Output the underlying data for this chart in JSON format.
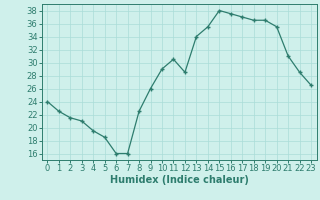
{
  "x": [
    0,
    1,
    2,
    3,
    4,
    5,
    6,
    7,
    8,
    9,
    10,
    11,
    12,
    13,
    14,
    15,
    16,
    17,
    18,
    19,
    20,
    21,
    22,
    23
  ],
  "y": [
    24,
    22.5,
    21.5,
    21,
    19.5,
    18.5,
    16,
    16,
    22.5,
    26,
    29,
    30.5,
    28.5,
    34,
    35.5,
    38,
    37.5,
    37,
    36.5,
    36.5,
    35.5,
    31,
    28.5,
    26.5
  ],
  "xlabel": "Humidex (Indice chaleur)",
  "xlim": [
    -0.5,
    23.5
  ],
  "ylim": [
    15,
    39
  ],
  "yticks": [
    16,
    18,
    20,
    22,
    24,
    26,
    28,
    30,
    32,
    34,
    36,
    38
  ],
  "xticks": [
    0,
    1,
    2,
    3,
    4,
    5,
    6,
    7,
    8,
    9,
    10,
    11,
    12,
    13,
    14,
    15,
    16,
    17,
    18,
    19,
    20,
    21,
    22,
    23
  ],
  "line_color": "#2e7d6e",
  "marker": "+",
  "bg_color": "#cff0eb",
  "grid_color": "#aaddd8",
  "label_fontsize": 7,
  "tick_fontsize": 6
}
